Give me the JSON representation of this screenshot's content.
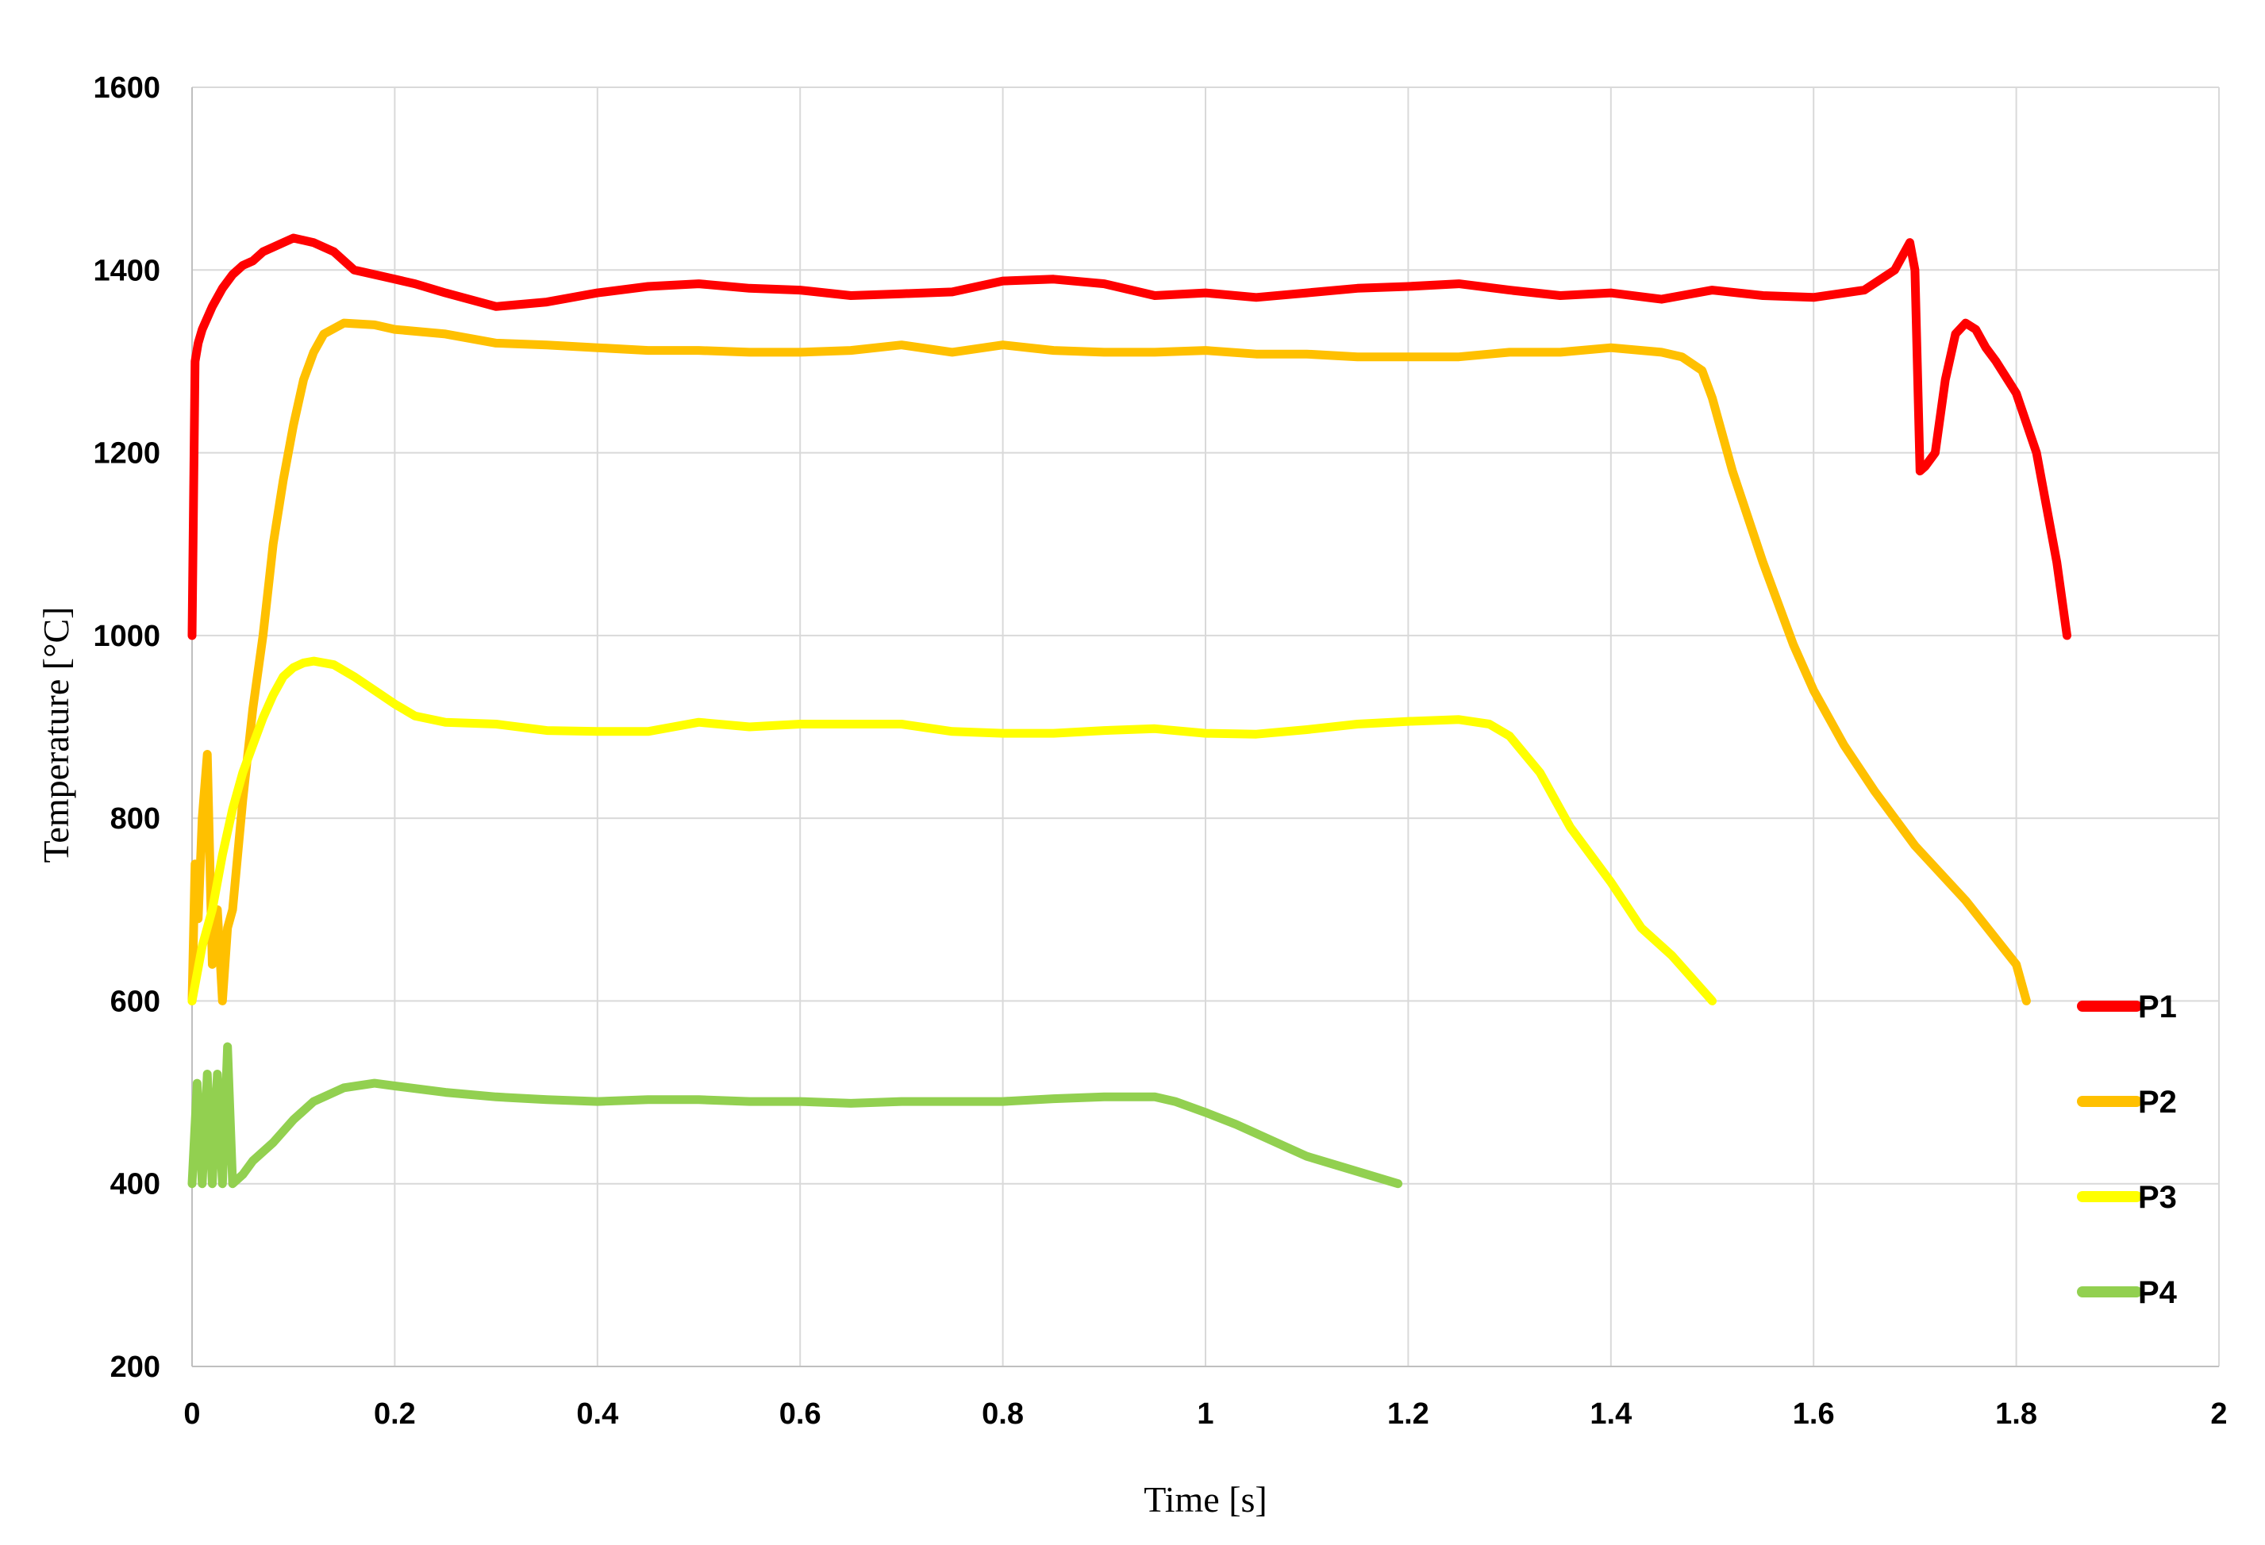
{
  "chart_data": {
    "type": "line",
    "title": "",
    "xlabel": "Time [s]",
    "ylabel": "Temperature [°C]",
    "xlim": [
      0,
      2
    ],
    "ylim": [
      200,
      1600
    ],
    "xticks": [
      "0",
      "0.2",
      "0.4",
      "0.6",
      "0.8",
      "1",
      "1.2",
      "1.4",
      "1.6",
      "1.8",
      "2"
    ],
    "yticks": [
      "200",
      "400",
      "600",
      "800",
      "1000",
      "1200",
      "1400",
      "1600"
    ],
    "grid": true,
    "legend": "right",
    "series": [
      {
        "name": "P1",
        "color": "#ff0000",
        "x": [
          0,
          0.003,
          0.006,
          0.01,
          0.02,
          0.03,
          0.04,
          0.05,
          0.06,
          0.07,
          0.08,
          0.09,
          0.1,
          0.12,
          0.14,
          0.16,
          0.18,
          0.2,
          0.22,
          0.25,
          0.3,
          0.35,
          0.4,
          0.45,
          0.5,
          0.55,
          0.6,
          0.65,
          0.7,
          0.75,
          0.8,
          0.85,
          0.9,
          0.95,
          1.0,
          1.05,
          1.1,
          1.15,
          1.2,
          1.25,
          1.3,
          1.35,
          1.4,
          1.45,
          1.5,
          1.55,
          1.6,
          1.65,
          1.68,
          1.695,
          1.7,
          1.705,
          1.71,
          1.72,
          1.73,
          1.74,
          1.75,
          1.76,
          1.77,
          1.78,
          1.8,
          1.82,
          1.84,
          1.85
        ],
        "y": [
          1000,
          1300,
          1320,
          1335,
          1360,
          1380,
          1395,
          1405,
          1410,
          1420,
          1425,
          1430,
          1435,
          1430,
          1420,
          1400,
          1395,
          1390,
          1385,
          1375,
          1360,
          1365,
          1375,
          1382,
          1385,
          1380,
          1378,
          1372,
          1374,
          1376,
          1388,
          1390,
          1385,
          1372,
          1375,
          1370,
          1375,
          1380,
          1382,
          1385,
          1378,
          1372,
          1375,
          1368,
          1378,
          1372,
          1370,
          1378,
          1400,
          1430,
          1400,
          1180,
          1185,
          1200,
          1280,
          1330,
          1342,
          1335,
          1315,
          1300,
          1265,
          1200,
          1080,
          1000
        ]
      },
      {
        "name": "P2",
        "color": "#ffc000",
        "x": [
          0,
          0.003,
          0.006,
          0.01,
          0.015,
          0.02,
          0.025,
          0.03,
          0.035,
          0.04,
          0.05,
          0.06,
          0.07,
          0.08,
          0.09,
          0.1,
          0.11,
          0.12,
          0.13,
          0.15,
          0.18,
          0.2,
          0.25,
          0.3,
          0.35,
          0.4,
          0.45,
          0.5,
          0.55,
          0.6,
          0.65,
          0.7,
          0.75,
          0.8,
          0.85,
          0.9,
          0.95,
          1.0,
          1.05,
          1.1,
          1.15,
          1.2,
          1.25,
          1.3,
          1.35,
          1.4,
          1.45,
          1.47,
          1.49,
          1.5,
          1.52,
          1.55,
          1.58,
          1.6,
          1.63,
          1.66,
          1.7,
          1.75,
          1.8,
          1.81
        ],
        "y": [
          600,
          750,
          690,
          800,
          870,
          640,
          700,
          600,
          680,
          700,
          820,
          920,
          1000,
          1100,
          1170,
          1230,
          1280,
          1310,
          1330,
          1342,
          1340,
          1335,
          1330,
          1320,
          1318,
          1315,
          1312,
          1312,
          1310,
          1310,
          1312,
          1318,
          1310,
          1318,
          1312,
          1310,
          1310,
          1312,
          1308,
          1308,
          1305,
          1305,
          1305,
          1310,
          1310,
          1315,
          1310,
          1305,
          1290,
          1260,
          1180,
          1080,
          990,
          940,
          880,
          830,
          770,
          710,
          640,
          600
        ]
      },
      {
        "name": "P3",
        "color": "#ffff00",
        "x": [
          0,
          0.01,
          0.02,
          0.03,
          0.04,
          0.05,
          0.06,
          0.07,
          0.08,
          0.09,
          0.1,
          0.11,
          0.12,
          0.14,
          0.16,
          0.18,
          0.2,
          0.22,
          0.25,
          0.3,
          0.35,
          0.4,
          0.45,
          0.5,
          0.55,
          0.6,
          0.65,
          0.7,
          0.75,
          0.8,
          0.85,
          0.9,
          0.95,
          1.0,
          1.05,
          1.1,
          1.15,
          1.2,
          1.25,
          1.28,
          1.3,
          1.33,
          1.36,
          1.4,
          1.43,
          1.46,
          1.5
        ],
        "y": [
          600,
          660,
          700,
          760,
          810,
          850,
          880,
          910,
          935,
          955,
          965,
          970,
          972,
          968,
          955,
          940,
          925,
          912,
          905,
          903,
          896,
          895,
          895,
          905,
          900,
          903,
          903,
          903,
          895,
          893,
          893,
          896,
          898,
          893,
          892,
          897,
          903,
          906,
          908,
          903,
          890,
          850,
          790,
          730,
          680,
          650,
          600
        ]
      },
      {
        "name": "P4",
        "color": "#92d050",
        "x": [
          0,
          0.005,
          0.01,
          0.015,
          0.02,
          0.025,
          0.03,
          0.035,
          0.04,
          0.05,
          0.06,
          0.08,
          0.1,
          0.12,
          0.15,
          0.18,
          0.2,
          0.25,
          0.3,
          0.35,
          0.4,
          0.45,
          0.5,
          0.55,
          0.6,
          0.65,
          0.7,
          0.75,
          0.8,
          0.85,
          0.9,
          0.95,
          0.97,
          1.0,
          1.03,
          1.06,
          1.1,
          1.13,
          1.16,
          1.19
        ],
        "y": [
          400,
          510,
          400,
          520,
          400,
          520,
          400,
          550,
          400,
          410,
          425,
          445,
          470,
          490,
          505,
          510,
          507,
          500,
          495,
          492,
          490,
          492,
          492,
          490,
          490,
          488,
          490,
          490,
          490,
          493,
          495,
          495,
          490,
          478,
          465,
          450,
          430,
          420,
          410,
          400
        ]
      }
    ]
  }
}
